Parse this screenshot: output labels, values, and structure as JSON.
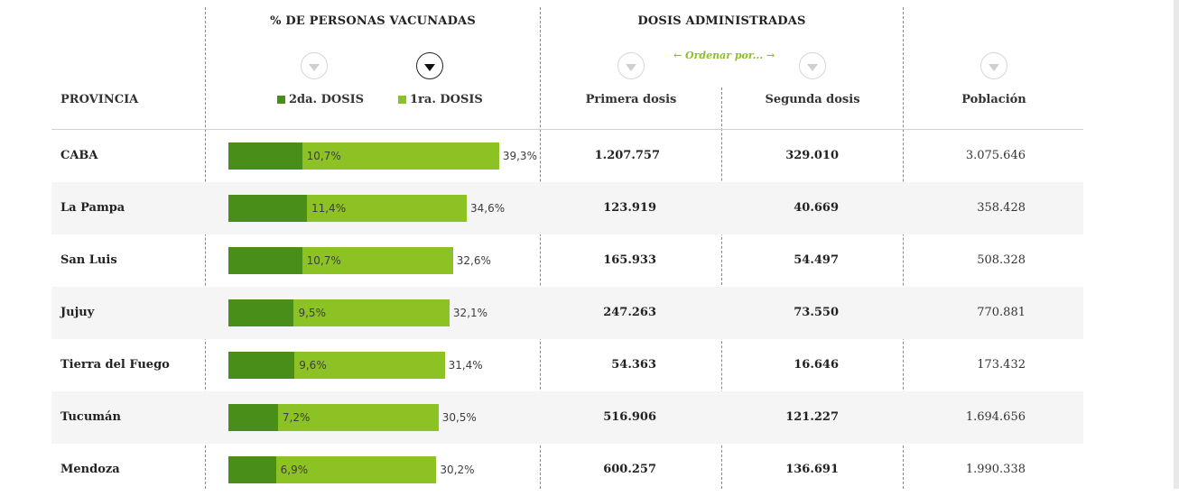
{
  "headers": {
    "group_pct": "% DE PERSONAS VACUNADAS",
    "group_dosis": "DOSIS ADMINISTRADAS",
    "provincia": "PROVINCIA",
    "legend_2da": "2da. DOSIS",
    "legend_1ra": "1ra. DOSIS",
    "primera": "Primera dosis",
    "segunda": "Segunda dosis",
    "poblacion": "Población",
    "ordenar": "← Ordenar por... →"
  },
  "colors": {
    "dosis1": "#8cc224",
    "dosis2": "#4a8e1a",
    "accent": "#8cbf26"
  },
  "active_sort": "1ra. DOSIS",
  "rows": [
    {
      "provincia": "CABA",
      "pct2": 10.7,
      "pct1": 39.3,
      "pct2_label": "10,7%",
      "pct1_label": "39,3%",
      "primera": "1.207.757",
      "segunda": "329.010",
      "poblacion": "3.075.646"
    },
    {
      "provincia": "La Pampa",
      "pct2": 11.4,
      "pct1": 34.6,
      "pct2_label": "11,4%",
      "pct1_label": "34,6%",
      "primera": "123.919",
      "segunda": "40.669",
      "poblacion": "358.428"
    },
    {
      "provincia": "San Luis",
      "pct2": 10.7,
      "pct1": 32.6,
      "pct2_label": "10,7%",
      "pct1_label": "32,6%",
      "primera": "165.933",
      "segunda": "54.497",
      "poblacion": "508.328"
    },
    {
      "provincia": "Jujuy",
      "pct2": 9.5,
      "pct1": 32.1,
      "pct2_label": "9,5%",
      "pct1_label": "32,1%",
      "primera": "247.263",
      "segunda": "73.550",
      "poblacion": "770.881"
    },
    {
      "provincia": "Tierra del Fuego",
      "pct2": 9.6,
      "pct1": 31.4,
      "pct2_label": "9,6%",
      "pct1_label": "31,4%",
      "primera": "54.363",
      "segunda": "16.646",
      "poblacion": "173.432"
    },
    {
      "provincia": "Tucumán",
      "pct2": 7.2,
      "pct1": 30.5,
      "pct2_label": "7,2%",
      "pct1_label": "30,5%",
      "primera": "516.906",
      "segunda": "121.227",
      "poblacion": "1.694.656"
    },
    {
      "provincia": "Mendoza",
      "pct2": 6.9,
      "pct1": 30.2,
      "pct2_label": "6,9%",
      "pct1_label": "30,2%",
      "primera": "600.257",
      "segunda": "136.691",
      "poblacion": "1.990.338"
    }
  ]
}
